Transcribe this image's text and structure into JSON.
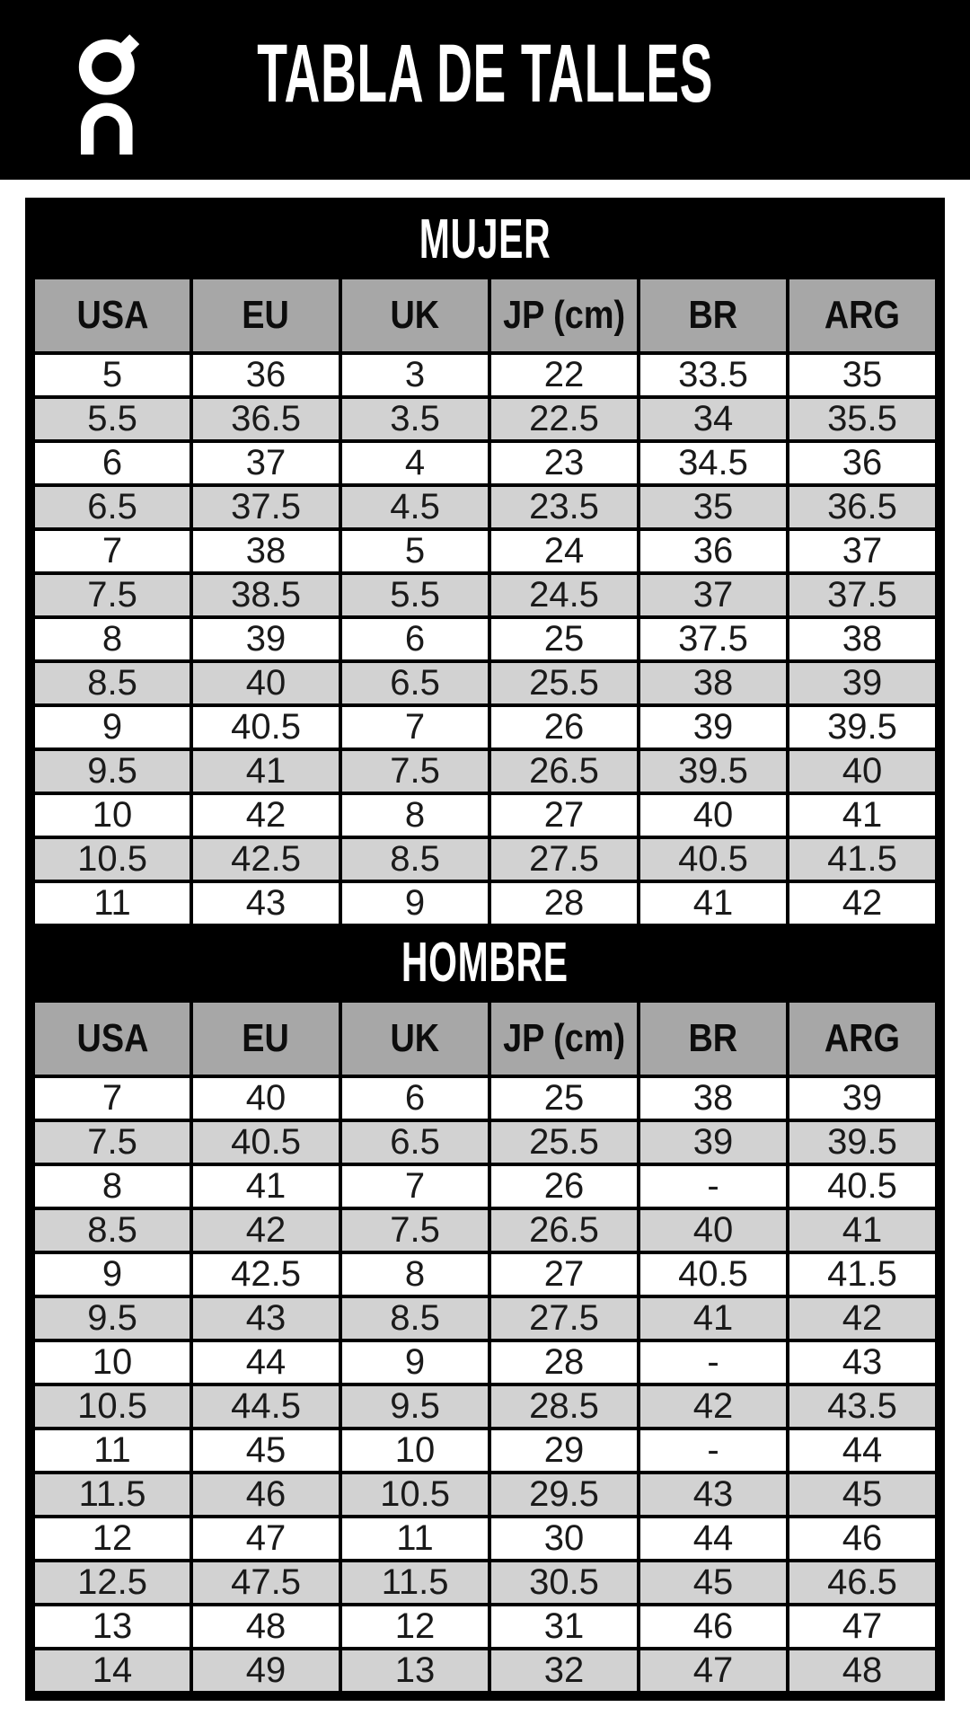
{
  "header": {
    "title": "TABLA DE TALLES",
    "logo_icon": "on-logo"
  },
  "columns": [
    "USA",
    "EU",
    "UK",
    "JP (cm)",
    "BR",
    "ARG"
  ],
  "tables": [
    {
      "id": "mujer",
      "title": "MUJER",
      "rows": [
        [
          "5",
          "36",
          "3",
          "22",
          "33.5",
          "35"
        ],
        [
          "5.5",
          "36.5",
          "3.5",
          "22.5",
          "34",
          "35.5"
        ],
        [
          "6",
          "37",
          "4",
          "23",
          "34.5",
          "36"
        ],
        [
          "6.5",
          "37.5",
          "4.5",
          "23.5",
          "35",
          "36.5"
        ],
        [
          "7",
          "38",
          "5",
          "24",
          "36",
          "37"
        ],
        [
          "7.5",
          "38.5",
          "5.5",
          "24.5",
          "37",
          "37.5"
        ],
        [
          "8",
          "39",
          "6",
          "25",
          "37.5",
          "38"
        ],
        [
          "8.5",
          "40",
          "6.5",
          "25.5",
          "38",
          "39"
        ],
        [
          "9",
          "40.5",
          "7",
          "26",
          "39",
          "39.5"
        ],
        [
          "9.5",
          "41",
          "7.5",
          "26.5",
          "39.5",
          "40"
        ],
        [
          "10",
          "42",
          "8",
          "27",
          "40",
          "41"
        ],
        [
          "10.5",
          "42.5",
          "8.5",
          "27.5",
          "40.5",
          "41.5"
        ],
        [
          "11",
          "43",
          "9",
          "28",
          "41",
          "42"
        ]
      ]
    },
    {
      "id": "hombre",
      "title": "HOMBRE",
      "rows": [
        [
          "7",
          "40",
          "6",
          "25",
          "38",
          "39"
        ],
        [
          "7.5",
          "40.5",
          "6.5",
          "25.5",
          "39",
          "39.5"
        ],
        [
          "8",
          "41",
          "7",
          "26",
          "-",
          "40.5"
        ],
        [
          "8.5",
          "42",
          "7.5",
          "26.5",
          "40",
          "41"
        ],
        [
          "9",
          "42.5",
          "8",
          "27",
          "40.5",
          "41.5"
        ],
        [
          "9.5",
          "43",
          "8.5",
          "27.5",
          "41",
          "42"
        ],
        [
          "10",
          "44",
          "9",
          "28",
          "-",
          "43"
        ],
        [
          "10.5",
          "44.5",
          "9.5",
          "28.5",
          "42",
          "43.5"
        ],
        [
          "11",
          "45",
          "10",
          "29",
          "-",
          "44"
        ],
        [
          "11.5",
          "46",
          "10.5",
          "29.5",
          "43",
          "45"
        ],
        [
          "12",
          "47",
          "11",
          "30",
          "44",
          "46"
        ],
        [
          "12.5",
          "47.5",
          "11.5",
          "30.5",
          "45",
          "46.5"
        ],
        [
          "13",
          "48",
          "12",
          "31",
          "46",
          "47"
        ],
        [
          "14",
          "49",
          "13",
          "32",
          "47",
          "48"
        ]
      ]
    }
  ],
  "colors": {
    "banner_bg": "#000000",
    "banner_text": "#ffffff",
    "header_cell_bg": "#a7a7a7",
    "row_bg": "#ffffff",
    "row_alt_bg": "#d2d2d2",
    "border": "#000000",
    "cell_text": "#1a1a1a"
  }
}
